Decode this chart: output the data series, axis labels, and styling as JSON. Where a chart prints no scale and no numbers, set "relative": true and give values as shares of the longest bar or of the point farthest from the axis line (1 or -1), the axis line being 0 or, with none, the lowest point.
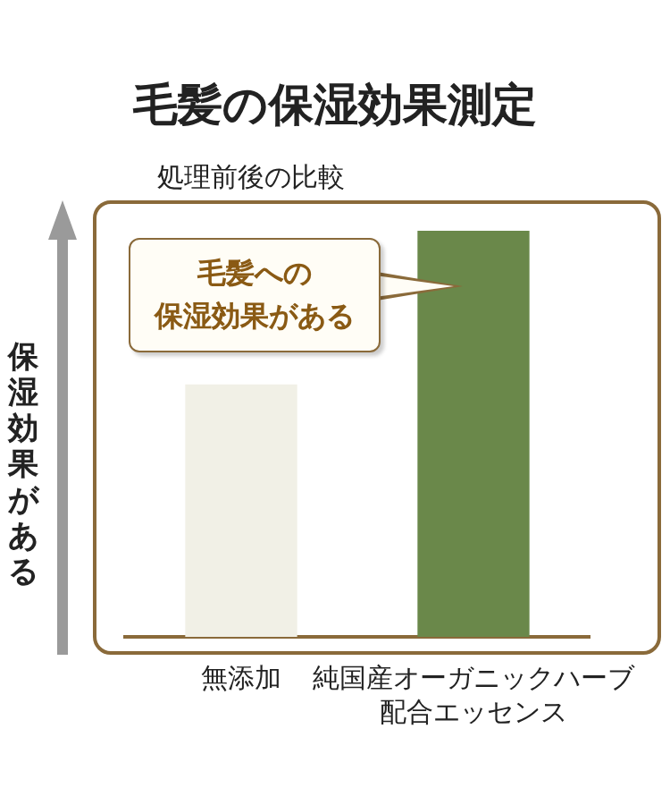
{
  "chart_data": {
    "type": "bar",
    "title": "毛髪の保湿効果測定",
    "subtitle": "処理前後の比較",
    "ylabel": "保湿効果がある",
    "annotations": [
      "毛髪への",
      "保湿効果がある"
    ],
    "categories": [
      "無添加",
      "純国産オーガニックハーブ配合エッセンス"
    ],
    "values": [
      0.62,
      1
    ],
    "colors": [
      "#f1f0e6",
      "#6a884a"
    ],
    "relative": true,
    "grid": false,
    "legend": false
  }
}
